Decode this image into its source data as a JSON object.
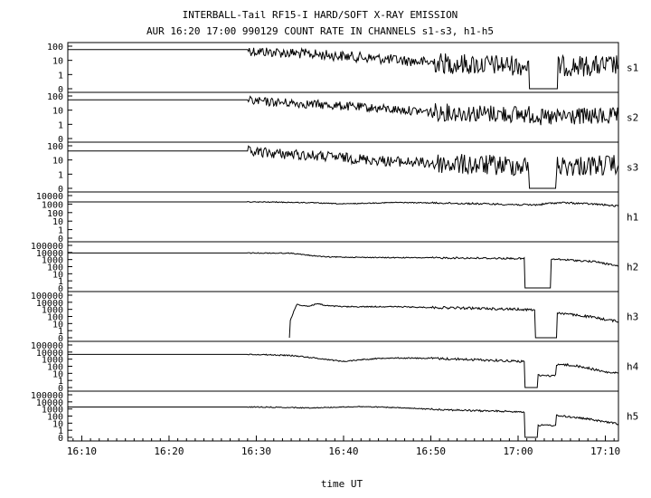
{
  "title_line1": "INTERBALL-Tail RF15-I HARD/SOFT X-RAY EMISSION",
  "title_line2": "AUR 16:20 17:00 990129  COUNT RATE IN CHANNELS s1-s3, h1-h5",
  "xlabel": "time UT",
  "x_tick_labels": [
    "16:10",
    "16:20",
    "16:30",
    "16:40",
    "16:50",
    "17:00",
    "17:10"
  ],
  "chart_data": {
    "type": "line",
    "title": "INTERBALL-Tail RF15-I HARD/SOFT X-RAY EMISSION",
    "subtitle": "AUR 16:20 17:00 990129  COUNT RATE IN CHANNELS s1-s3, h1-h5",
    "xlabel": "time UT",
    "x_unit": "minutes after 16:00",
    "xlim": [
      8.4,
      71.5
    ],
    "x_ticks": [
      10,
      20,
      30,
      40,
      50,
      60,
      70
    ],
    "x_tick_labels": [
      "16:10",
      "16:20",
      "16:30",
      "16:40",
      "16:50",
      "17:00",
      "17:10"
    ],
    "y_scale": "log",
    "panels": [
      {
        "name": "s1",
        "y_ticks": [
          0,
          1,
          10,
          100
        ],
        "y_tick_labels": [
          "0",
          "1",
          "10",
          "100"
        ],
        "ymax": 100,
        "noise": 0.35,
        "series": [
          [
            8.4,
            58
          ],
          [
            29,
            58
          ],
          [
            29.5,
            45
          ],
          [
            35,
            30
          ],
          [
            40,
            20
          ],
          [
            45,
            12
          ],
          [
            50,
            7
          ],
          [
            55,
            5
          ],
          [
            60,
            4.5
          ],
          [
            61.2,
            4
          ],
          [
            61.3,
            0
          ],
          [
            64.5,
            0
          ],
          [
            64.6,
            4
          ],
          [
            70,
            4
          ],
          [
            71.5,
            5
          ]
        ]
      },
      {
        "name": "s2",
        "y_ticks": [
          0,
          1,
          10,
          100
        ],
        "y_tick_labels": [
          "0",
          "1",
          "10",
          "100"
        ],
        "ymax": 150,
        "noise": 0.3,
        "series": [
          [
            8.4,
            75
          ],
          [
            29,
            75
          ],
          [
            29.5,
            60
          ],
          [
            35,
            40
          ],
          [
            40,
            25
          ],
          [
            45,
            15
          ],
          [
            50,
            9
          ],
          [
            55,
            7
          ],
          [
            60,
            6
          ],
          [
            62.5,
            5
          ],
          [
            62.6,
            3
          ],
          [
            64.5,
            3
          ],
          [
            64.6,
            4
          ],
          [
            71.5,
            4
          ]
        ]
      },
      {
        "name": "s3",
        "y_ticks": [
          0,
          1,
          10,
          100
        ],
        "y_tick_labels": [
          "0",
          "1",
          "10",
          "100"
        ],
        "ymax": 150,
        "noise": 0.35,
        "series": [
          [
            8.4,
            60
          ],
          [
            29,
            60
          ],
          [
            29.5,
            50
          ],
          [
            35,
            30
          ],
          [
            40,
            18
          ],
          [
            45,
            10
          ],
          [
            50,
            7
          ],
          [
            55,
            5
          ],
          [
            60,
            4.5
          ],
          [
            61.2,
            4
          ],
          [
            61.3,
            0
          ],
          [
            64.3,
            0
          ],
          [
            64.4,
            4
          ],
          [
            71.5,
            5
          ]
        ]
      },
      {
        "name": "h1",
        "y_ticks": [
          0,
          1,
          10,
          100,
          1000,
          10000
        ],
        "y_tick_labels": [
          "0",
          "1",
          "10",
          "100",
          "1000",
          "10000"
        ],
        "ymax": 12000,
        "noise": 0.03,
        "series": [
          [
            8.4,
            2100
          ],
          [
            28,
            2100
          ],
          [
            32,
            2000
          ],
          [
            36,
            1700
          ],
          [
            40,
            1200
          ],
          [
            43,
            1500
          ],
          [
            46,
            1800
          ],
          [
            50,
            1600
          ],
          [
            55,
            1300
          ],
          [
            59,
            1050
          ],
          [
            61.5,
            900
          ],
          [
            62.5,
            1000
          ],
          [
            63.5,
            1400
          ],
          [
            65,
            1700
          ],
          [
            67,
            1400
          ],
          [
            69,
            1100
          ],
          [
            71.5,
            650
          ]
        ]
      },
      {
        "name": "h2",
        "y_ticks": [
          0,
          1,
          10,
          100,
          1000,
          10000,
          100000
        ],
        "y_tick_labels": [
          "0",
          "1",
          "10",
          "100",
          "1000",
          "10000",
          "100000"
        ],
        "ymax": 110000,
        "noise": 0.03,
        "series": [
          [
            8.4,
            9000
          ],
          [
            30,
            9000
          ],
          [
            34,
            8500
          ],
          [
            35.5,
            5000
          ],
          [
            38,
            2500
          ],
          [
            45,
            2000
          ],
          [
            50,
            1900
          ],
          [
            55,
            1700
          ],
          [
            60,
            1500
          ],
          [
            60.7,
            1450
          ],
          [
            60.8,
            0
          ],
          [
            63.7,
            0
          ],
          [
            63.8,
            1200
          ],
          [
            66,
            900
          ],
          [
            69,
            500
          ],
          [
            71.5,
            120
          ]
        ]
      },
      {
        "name": "h3",
        "y_ticks": [
          0,
          1,
          10,
          100,
          1000,
          10000,
          100000
        ],
        "y_tick_labels": [
          "0",
          "1",
          "10",
          "100",
          "1000",
          "10000",
          "100000"
        ],
        "ymax": 110000,
        "noise": 0.04,
        "series": [
          [
            33.8,
            0
          ],
          [
            33.9,
            30
          ],
          [
            34.6,
            5000
          ],
          [
            36,
            3000
          ],
          [
            37,
            7000
          ],
          [
            38,
            3500
          ],
          [
            40,
            2500
          ],
          [
            45,
            2600
          ],
          [
            50,
            2000
          ],
          [
            55,
            1500
          ],
          [
            60,
            1100
          ],
          [
            61.9,
            900
          ],
          [
            62,
            0
          ],
          [
            64.4,
            0
          ],
          [
            64.5,
            350
          ],
          [
            66,
            200
          ],
          [
            68,
            100
          ],
          [
            70,
            40
          ],
          [
            71.5,
            20
          ]
        ]
      },
      {
        "name": "h4",
        "y_ticks": [
          0,
          1,
          10,
          100,
          1000,
          10000,
          100000
        ],
        "y_tick_labels": [
          "0",
          "1",
          "10",
          "100",
          "1000",
          "10000",
          "100000"
        ],
        "ymax": 110000,
        "noise": 0.04,
        "series": [
          [
            8.4,
            5000
          ],
          [
            30,
            5000
          ],
          [
            34,
            3500
          ],
          [
            36,
            2000
          ],
          [
            38,
            1000
          ],
          [
            40,
            500
          ],
          [
            42,
            900
          ],
          [
            45,
            1600
          ],
          [
            50,
            1400
          ],
          [
            55,
            900
          ],
          [
            60,
            550
          ],
          [
            60.7,
            500
          ],
          [
            60.8,
            0
          ],
          [
            62.2,
            0
          ],
          [
            62.3,
            5
          ],
          [
            64.3,
            5
          ],
          [
            64.4,
            200
          ],
          [
            66,
            150
          ],
          [
            68,
            60
          ],
          [
            70,
            15
          ],
          [
            71.5,
            10
          ]
        ]
      },
      {
        "name": "h5",
        "y_ticks": [
          0,
          1,
          10,
          100,
          1000,
          10000,
          100000
        ],
        "y_tick_labels": [
          "0",
          "1",
          "10",
          "100",
          "1000",
          "10000",
          "100000"
        ],
        "ymax": 110000,
        "noise": 0.03,
        "series": [
          [
            8.4,
            2000
          ],
          [
            30,
            2000
          ],
          [
            33,
            1800
          ],
          [
            36,
            1500
          ],
          [
            40,
            2000
          ],
          [
            42,
            2300
          ],
          [
            45,
            1800
          ],
          [
            50,
            1000
          ],
          [
            55,
            600
          ],
          [
            60,
            450
          ],
          [
            60.7,
            400
          ],
          [
            60.8,
            0
          ],
          [
            62.2,
            0
          ],
          [
            62.3,
            5
          ],
          [
            64.3,
            5
          ],
          [
            64.4,
            120
          ],
          [
            66,
            80
          ],
          [
            68,
            40
          ],
          [
            70,
            15
          ],
          [
            71.5,
            8
          ]
        ]
      }
    ]
  }
}
